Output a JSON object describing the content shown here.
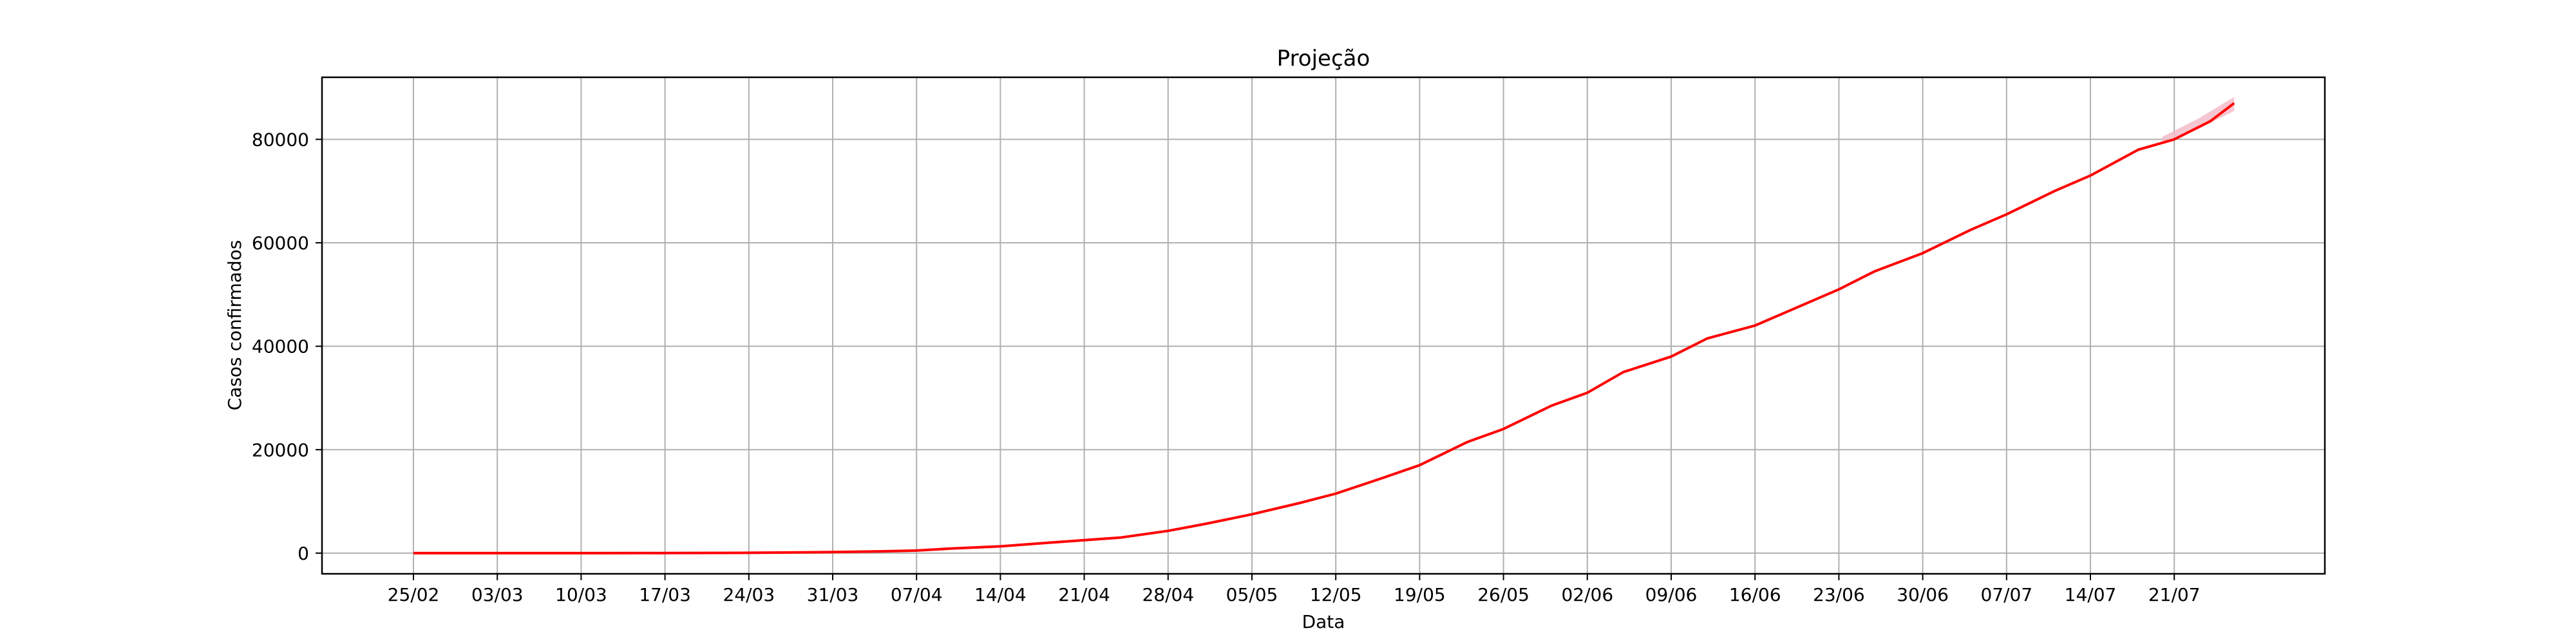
{
  "chart_data": {
    "type": "line",
    "title": "Projeção",
    "xlabel": "Data",
    "ylabel": "Casos confirmados",
    "ylim": [
      -4000,
      92000
    ],
    "yticks": [
      0,
      20000,
      40000,
      60000,
      80000
    ],
    "xlim": [
      -4,
      113
    ],
    "xticks": [
      {
        "day": 0,
        "label": "25/02"
      },
      {
        "day": 7,
        "label": "03/03"
      },
      {
        "day": 14,
        "label": "10/03"
      },
      {
        "day": 21,
        "label": "17/03"
      },
      {
        "day": 28,
        "label": "24/03"
      },
      {
        "day": 35,
        "label": "31/03"
      },
      {
        "day": 42,
        "label": "07/04"
      },
      {
        "day": 49,
        "label": "14/04"
      },
      {
        "day": 56,
        "label": "21/04"
      },
      {
        "day": 63,
        "label": "28/04"
      },
      {
        "day": 70,
        "label": "05/05"
      },
      {
        "day": 77,
        "label": "12/05"
      },
      {
        "day": 84,
        "label": "19/05"
      },
      {
        "day": 91,
        "label": "26/05"
      },
      {
        "day": 98,
        "label": "02/06"
      },
      {
        "day": 105,
        "label": "09/06"
      },
      {
        "day": 112,
        "label": "16/06"
      },
      {
        "day": 119,
        "label": "23/06"
      },
      {
        "day": 126,
        "label": "30/06"
      },
      {
        "day": 133,
        "label": "07/07"
      },
      {
        "day": 140,
        "label": "14/07"
      },
      {
        "day": 147,
        "label": "21/07"
      }
    ],
    "grid": true,
    "colors": {
      "line": "#ff0000",
      "band": "#f2b8c6",
      "grid": "#b0b0b0"
    },
    "series": [
      {
        "values": [
          {
            "day": 0,
            "y": 0
          },
          {
            "day": 7,
            "y": 0
          },
          {
            "day": 14,
            "y": 0
          },
          {
            "day": 21,
            "y": 10
          },
          {
            "day": 28,
            "y": 60
          },
          {
            "day": 35,
            "y": 200
          },
          {
            "day": 39,
            "y": 350
          },
          {
            "day": 42,
            "y": 500
          },
          {
            "day": 45,
            "y": 900
          },
          {
            "day": 49,
            "y": 1300
          },
          {
            "day": 53,
            "y": 2000
          },
          {
            "day": 56,
            "y": 2500
          },
          {
            "day": 59,
            "y": 3000
          },
          {
            "day": 63,
            "y": 4300
          },
          {
            "day": 66,
            "y": 5600
          },
          {
            "day": 70,
            "y": 7500
          },
          {
            "day": 74,
            "y": 9700
          },
          {
            "day": 77,
            "y": 11500
          },
          {
            "day": 81,
            "y": 14600
          },
          {
            "day": 84,
            "y": 17000
          },
          {
            "day": 88,
            "y": 21500
          },
          {
            "day": 91,
            "y": 24000
          },
          {
            "day": 95,
            "y": 28500
          },
          {
            "day": 98,
            "y": 31000
          },
          {
            "day": 101,
            "y": 35000
          },
          {
            "day": 105,
            "y": 38000
          },
          {
            "day": 108,
            "y": 41500
          },
          {
            "day": 112,
            "y": 44000
          },
          {
            "day": 115,
            "y": 47000
          },
          {
            "day": 119,
            "y": 51000
          },
          {
            "day": 122,
            "y": 54500
          },
          {
            "day": 126,
            "y": 58000
          },
          {
            "day": 130,
            "y": 62500
          },
          {
            "day": 133,
            "y": 65500
          },
          {
            "day": 137,
            "y": 70000
          },
          {
            "day": 140,
            "y": 73000
          },
          {
            "day": 144,
            "y": 78000
          },
          {
            "day": 147,
            "y": 80000
          },
          {
            "day": 150,
            "y": 83500
          },
          {
            "day": 152,
            "y": 87000
          }
        ]
      }
    ],
    "band": [
      {
        "day": 146,
        "lower": 79500,
        "upper": 80500
      },
      {
        "day": 149,
        "lower": 82000,
        "upper": 84000
      },
      {
        "day": 152,
        "lower": 85500,
        "upper": 88200
      }
    ]
  }
}
